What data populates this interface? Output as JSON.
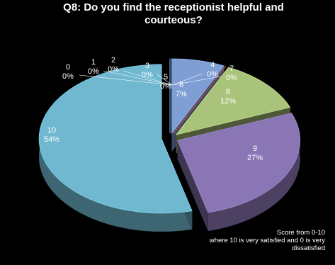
{
  "chart_data": {
    "type": "pie",
    "title": "Q8: Do you find the receptionist helpful  and courteous?",
    "style": "3d-exploded",
    "slices": [
      {
        "category": "0",
        "percent_label": "0%",
        "value": 0,
        "color": "#4f6d9f"
      },
      {
        "category": "1",
        "percent_label": "0%",
        "value": 0,
        "color": "#4f6d9f"
      },
      {
        "category": "2",
        "percent_label": "0%",
        "value": 0,
        "color": "#4f6d9f"
      },
      {
        "category": "3",
        "percent_label": "0%",
        "value": 0,
        "color": "#4f6d9f"
      },
      {
        "category": "4",
        "percent_label": "0%",
        "value": 0,
        "color": "#4f6d9f"
      },
      {
        "category": "5",
        "percent_label": "0%",
        "value": 0,
        "color": "#4f6d9f"
      },
      {
        "category": "6",
        "percent_label": "7%",
        "value": 7,
        "color": "#7f9ed4"
      },
      {
        "category": "7",
        "percent_label": "0%",
        "value": 0,
        "color": "#c0504d"
      },
      {
        "category": "8",
        "percent_label": "12%",
        "value": 12,
        "color": "#a9c47a"
      },
      {
        "category": "9",
        "percent_label": "27%",
        "value": 27,
        "color": "#8a76b4"
      },
      {
        "category": "10",
        "percent_label": "54%",
        "value": 54,
        "color": "#6fb8d0"
      }
    ],
    "footnote": [
      "Score from 0-10",
      "where 10 is very satisfied and  0 is very",
      "dissatisfied"
    ]
  }
}
